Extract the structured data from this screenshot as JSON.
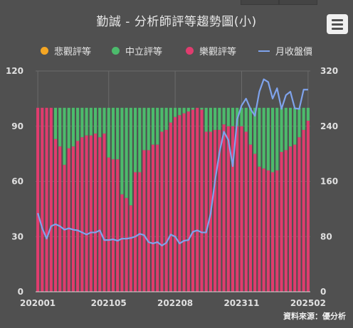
{
  "title": "勤誠 - 分析師評等趨勢圖(小)",
  "source": "資料來源：優分析",
  "legend": [
    {
      "name": "悲觀評等",
      "color": "#f5a623",
      "kind": "dot"
    },
    {
      "name": "中立評等",
      "color": "#4cbb6c",
      "kind": "dot"
    },
    {
      "name": "樂觀評等",
      "color": "#e03c6e",
      "kind": "dot"
    },
    {
      "name": "月收盤價",
      "color": "#7fa3ec",
      "kind": "line"
    }
  ],
  "chart_data": {
    "type": "bar",
    "stacked": true,
    "x": [
      "202001",
      "202002",
      "202003",
      "202004",
      "202005",
      "202006",
      "202007",
      "202008",
      "202009",
      "202010",
      "202011",
      "202012",
      "202101",
      "202102",
      "202103",
      "202104",
      "202105",
      "202106",
      "202107",
      "202108",
      "202109",
      "202110",
      "202111",
      "202112",
      "202201",
      "202202",
      "202203",
      "202204",
      "202205",
      "202206",
      "202207",
      "202208",
      "202209",
      "202210",
      "202211",
      "202212",
      "202301",
      "202302",
      "202303",
      "202304",
      "202305",
      "202306",
      "202307",
      "202308",
      "202309",
      "202310",
      "202311",
      "202312",
      "202401",
      "202402",
      "202403",
      "202404",
      "202405",
      "202406",
      "202407",
      "202408",
      "202409",
      "202410",
      "202411",
      "202412",
      "202501",
      "202502"
    ],
    "x_tick_labels": [
      "202001",
      "202105",
      "202208",
      "202311",
      "202502"
    ],
    "series": [
      {
        "name": "悲觀評等",
        "axis": "left",
        "values": [
          0,
          0,
          0,
          0,
          0,
          0,
          0,
          0,
          0,
          0,
          0,
          0,
          0,
          0,
          0,
          0,
          0,
          0,
          0,
          0,
          0,
          0,
          0,
          0,
          0,
          0,
          0,
          0,
          0,
          0,
          0,
          0,
          0,
          0,
          0,
          0,
          0,
          0,
          0,
          0,
          0,
          0,
          0,
          0,
          0,
          0,
          0,
          0,
          0,
          0,
          0,
          0,
          0,
          0,
          0,
          0,
          0,
          0,
          0,
          0,
          0,
          0
        ]
      },
      {
        "name": "樂觀評等",
        "axis": "left",
        "values": [
          100,
          100,
          100,
          100,
          83,
          79,
          69,
          78,
          79,
          82,
          84,
          85,
          85,
          86,
          84,
          86,
          73,
          72,
          72,
          53,
          51,
          47,
          65,
          65,
          77,
          77,
          80,
          80,
          87,
          88,
          92,
          95,
          96,
          97,
          98,
          99,
          100,
          99,
          87,
          87,
          88,
          88,
          91,
          90,
          90,
          90,
          90,
          87,
          80,
          75,
          68,
          67,
          66,
          65,
          66,
          76,
          77,
          79,
          80,
          84,
          88,
          93
        ]
      },
      {
        "name": "中立評等",
        "axis": "left",
        "values": [
          0,
          0,
          0,
          0,
          17,
          21,
          31,
          22,
          21,
          18,
          16,
          15,
          15,
          14,
          16,
          14,
          27,
          28,
          28,
          47,
          49,
          53,
          35,
          35,
          23,
          23,
          20,
          20,
          13,
          12,
          8,
          5,
          4,
          3,
          2,
          1,
          0,
          1,
          13,
          13,
          12,
          12,
          9,
          10,
          10,
          10,
          10,
          13,
          20,
          25,
          32,
          33,
          34,
          35,
          34,
          24,
          23,
          21,
          20,
          16,
          12,
          7
        ]
      },
      {
        "name": "月收盤價",
        "axis": "right",
        "type": "line",
        "values": [
          114,
          92,
          77,
          95,
          98,
          95,
          90,
          92,
          90,
          89,
          86,
          83,
          86,
          86,
          89,
          75,
          75,
          76,
          74,
          77,
          77,
          78,
          80,
          84,
          82,
          72,
          70,
          72,
          67,
          71,
          83,
          80,
          70,
          74,
          75,
          87,
          89,
          86,
          86,
          113,
          161,
          202,
          232,
          220,
          182,
          250,
          270,
          280,
          265,
          255,
          290,
          308,
          304,
          280,
          295,
          265,
          285,
          290,
          266,
          265,
          293,
          293
        ]
      }
    ],
    "y_left": {
      "min": 0,
      "max": 120,
      "ticks": [
        0,
        30,
        60,
        90,
        120
      ]
    },
    "y_right": {
      "min": 0,
      "max": 320,
      "ticks": [
        0,
        80,
        160,
        240,
        320
      ]
    },
    "grid": true,
    "legend_position": "top"
  }
}
